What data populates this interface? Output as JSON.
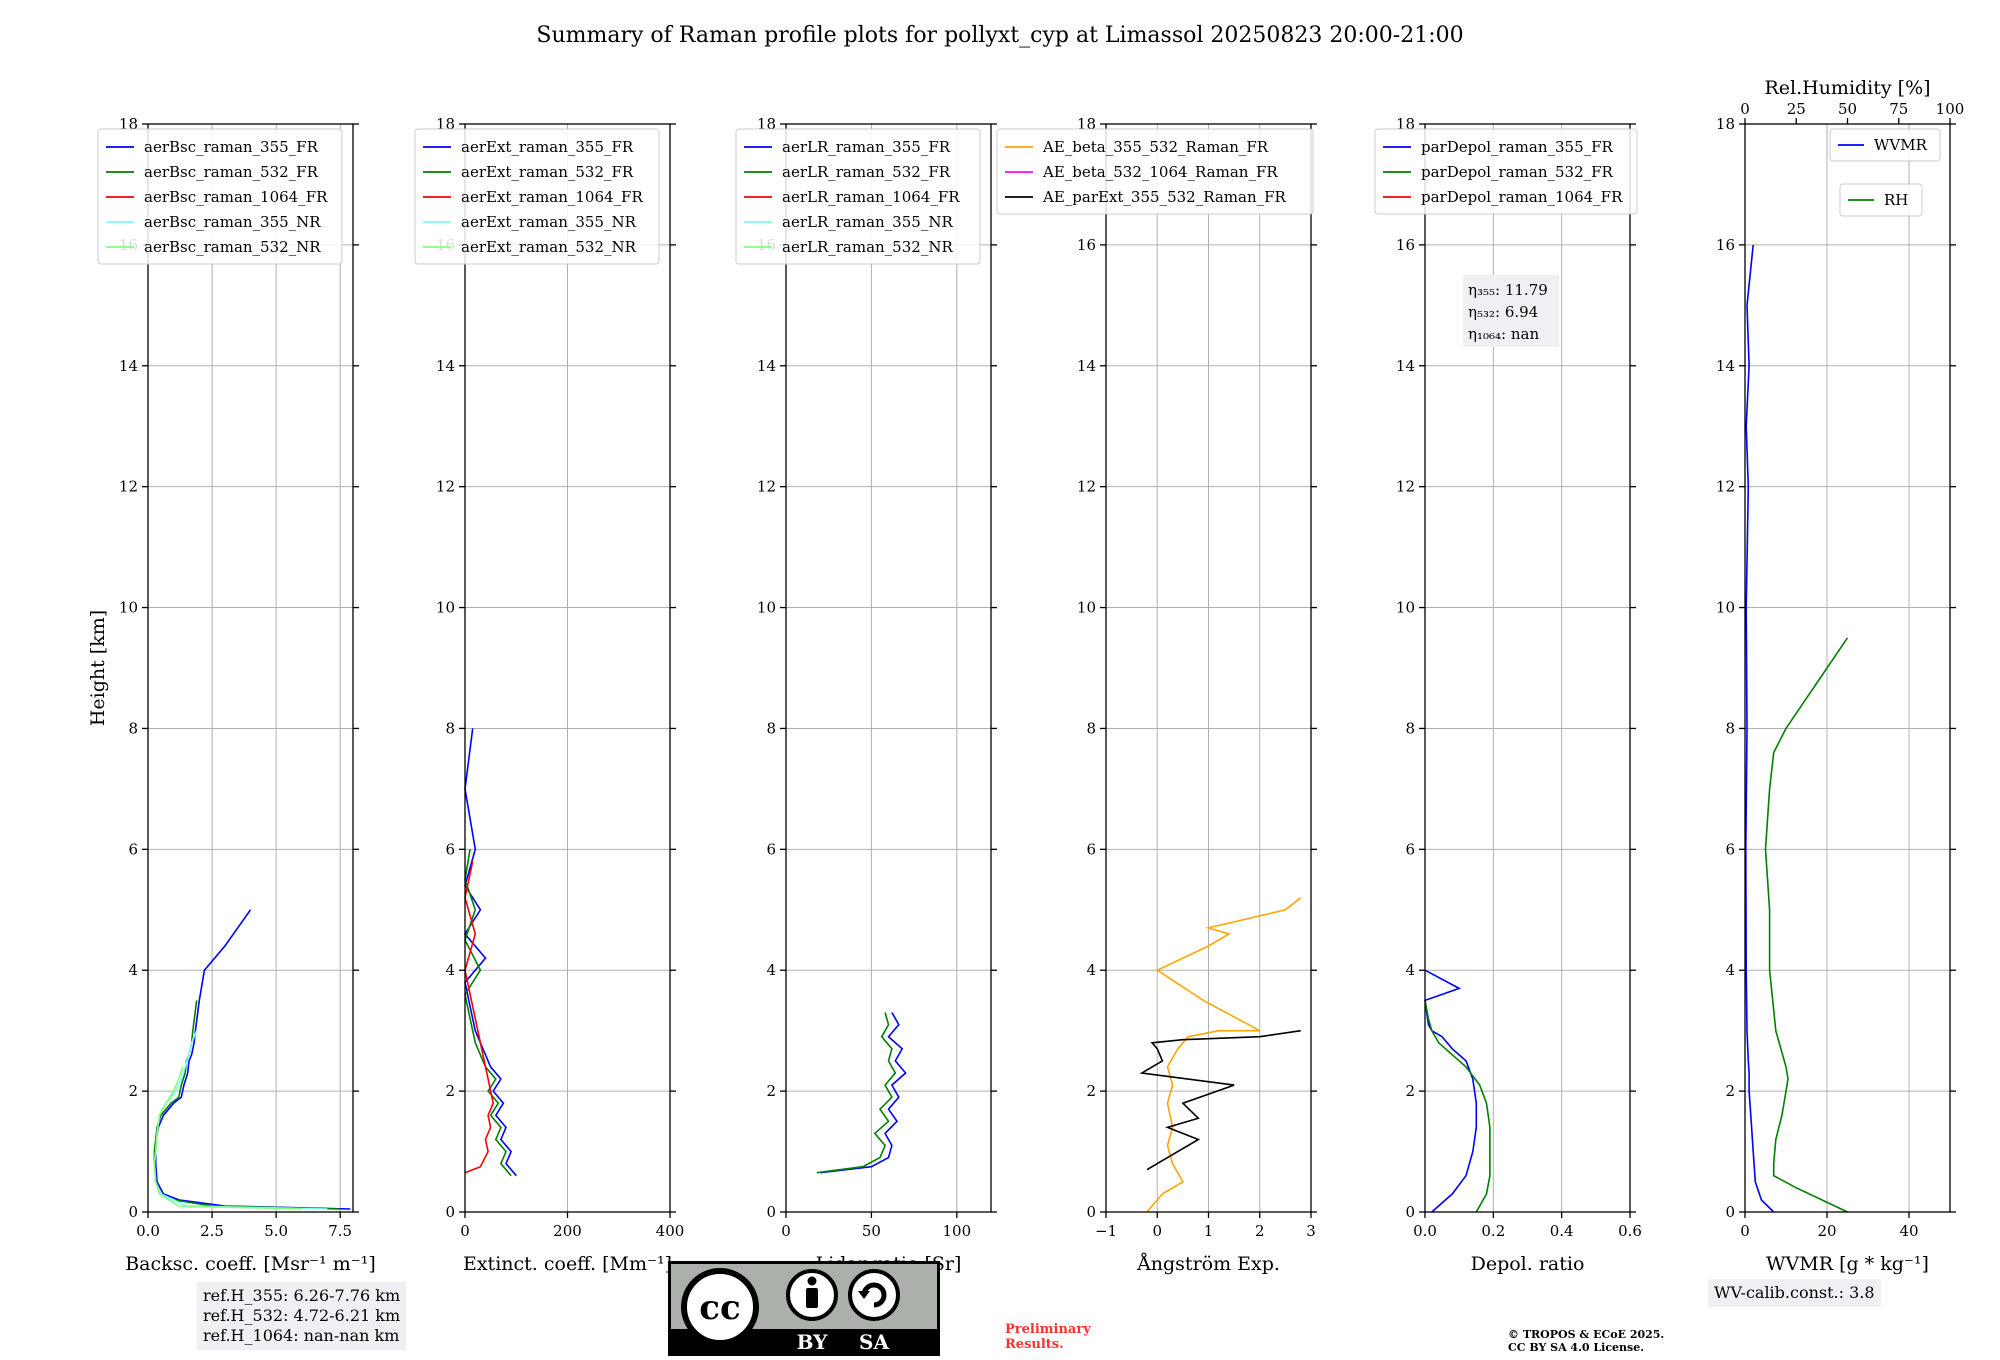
{
  "title": "Summary of Raman profile plots for pollyxt_cyp at Limassol 20250823 20:00-21:00",
  "y_label": "Height [km]",
  "chart_data": [
    {
      "id": "bsc",
      "type": "line",
      "xlabel": "Backsc. coeff. [Msr⁻¹ m⁻¹]",
      "xlim": [
        0,
        8
      ],
      "ylim": [
        0,
        18
      ],
      "xticks": [
        0,
        2.5,
        5,
        7.5
      ],
      "xticklabels": [
        "0.0",
        "2.5",
        "5.0",
        "7.5"
      ],
      "yticks": [
        0,
        2,
        4,
        6,
        8,
        10,
        12,
        14,
        16,
        18
      ],
      "legend_position": "top-left",
      "series": [
        {
          "name": "aerBsc_raman_355_FR",
          "color": "#0000ff",
          "x": [
            7.9,
            3.0,
            1.2,
            0.6,
            0.35,
            0.3,
            0.3,
            0.32,
            0.4,
            0.6,
            1.0,
            1.3,
            1.4,
            1.55,
            1.6,
            1.7,
            1.8,
            1.85,
            2.0,
            2.2,
            3.0,
            4.0
          ],
          "y": [
            0.05,
            0.1,
            0.2,
            0.3,
            0.5,
            0.8,
            1.0,
            1.2,
            1.4,
            1.6,
            1.8,
            1.9,
            2.1,
            2.3,
            2.5,
            2.6,
            2.8,
            3.0,
            3.5,
            4.0,
            4.4,
            5.0
          ]
        },
        {
          "name": "aerBsc_raman_532_FR",
          "color": "#008000",
          "x": [
            7.5,
            2.5,
            1.0,
            0.5,
            0.3,
            0.25,
            0.25,
            0.3,
            0.35,
            0.5,
            0.9,
            1.2,
            1.3,
            1.45,
            1.5,
            1.6,
            1.7,
            1.75,
            1.9
          ],
          "y": [
            0.05,
            0.1,
            0.2,
            0.3,
            0.5,
            0.8,
            1.0,
            1.2,
            1.4,
            1.6,
            1.8,
            1.9,
            2.1,
            2.3,
            2.5,
            2.6,
            2.8,
            3.0,
            3.5
          ]
        },
        {
          "name": "aerBsc_raman_1064_FR",
          "color": "#ff0000",
          "x": [],
          "y": []
        },
        {
          "name": "aerBsc_raman_355_NR",
          "color": "#7ffff0",
          "x": [
            7.0,
            1.5,
            0.5,
            0.3,
            0.25,
            0.3,
            0.35,
            0.45,
            0.7,
            1.1,
            1.3,
            1.45,
            1.6,
            1.7,
            1.9
          ],
          "y": [
            0.05,
            0.1,
            0.3,
            0.5,
            0.8,
            1.0,
            1.3,
            1.6,
            1.8,
            2.0,
            2.2,
            2.4,
            2.6,
            2.8,
            3.0
          ]
        },
        {
          "name": "aerBsc_raman_532_NR",
          "color": "#7fff7f",
          "x": [
            6.0,
            1.2,
            0.45,
            0.3,
            0.25,
            0.3,
            0.35,
            0.45,
            0.7,
            1.0,
            1.2,
            1.35
          ],
          "y": [
            0.05,
            0.1,
            0.3,
            0.5,
            0.8,
            1.0,
            1.3,
            1.6,
            1.8,
            2.0,
            2.2,
            2.4
          ]
        }
      ]
    },
    {
      "id": "ext",
      "type": "line",
      "xlabel": "Extinct. coeff. [Mm⁻¹]",
      "xlim": [
        0,
        400
      ],
      "ylim": [
        0,
        18
      ],
      "xticks": [
        0,
        200,
        400
      ],
      "xticklabels": [
        "0",
        "200",
        "400"
      ],
      "yticks": [
        0,
        2,
        4,
        6,
        8,
        10,
        12,
        14,
        16,
        18
      ],
      "legend_position": "top-left",
      "series": [
        {
          "name": "aerExt_raman_355_FR",
          "color": "#0000ff",
          "x": [
            100,
            80,
            90,
            70,
            80,
            60,
            75,
            55,
            70,
            50,
            40,
            30,
            20,
            10,
            0,
            40,
            0,
            30,
            0,
            20,
            0,
            15
          ],
          "y": [
            0.6,
            0.8,
            1.0,
            1.2,
            1.4,
            1.6,
            1.8,
            2.0,
            2.2,
            2.4,
            2.6,
            2.8,
            3.0,
            3.4,
            3.8,
            4.2,
            4.6,
            5.0,
            5.4,
            6.0,
            7.0,
            8.0
          ]
        },
        {
          "name": "aerExt_raman_532_FR",
          "color": "#008000",
          "x": [
            90,
            70,
            80,
            60,
            70,
            50,
            65,
            45,
            60,
            40,
            30,
            20,
            10,
            0,
            30,
            0,
            20,
            0,
            10
          ],
          "y": [
            0.6,
            0.8,
            1.0,
            1.2,
            1.4,
            1.6,
            1.8,
            2.0,
            2.2,
            2.4,
            2.6,
            2.8,
            3.2,
            3.6,
            4.0,
            4.5,
            5.0,
            5.5,
            6.0
          ]
        },
        {
          "name": "aerExt_raman_1064_FR",
          "color": "#ff0000",
          "x": [
            0,
            30,
            45,
            40,
            50,
            45,
            55,
            50,
            45,
            40,
            35,
            30,
            20,
            10,
            0,
            20,
            0,
            15
          ],
          "y": [
            0.65,
            0.75,
            1.0,
            1.2,
            1.4,
            1.6,
            1.8,
            2.0,
            2.2,
            2.4,
            2.6,
            2.8,
            3.2,
            3.6,
            4.0,
            4.6,
            5.2,
            5.8
          ]
        },
        {
          "name": "aerExt_raman_355_NR",
          "color": "#7ffff0",
          "x": [],
          "y": []
        },
        {
          "name": "aerExt_raman_532_NR",
          "color": "#7fff7f",
          "x": [],
          "y": []
        }
      ]
    },
    {
      "id": "lr",
      "type": "line",
      "xlabel": "Lidar ratio [Sr]",
      "xlim": [
        0,
        120
      ],
      "ylim": [
        0,
        18
      ],
      "xticks": [
        0,
        50,
        100
      ],
      "xticklabels": [
        "0",
        "50",
        "100"
      ],
      "yticks": [
        0,
        2,
        4,
        6,
        8,
        10,
        12,
        14,
        16,
        18
      ],
      "legend_position": "top-left",
      "series": [
        {
          "name": "aerLR_raman_355_FR",
          "color": "#0000ff",
          "x": [
            20,
            50,
            60,
            62,
            58,
            65,
            60,
            66,
            62,
            70,
            64,
            68,
            60,
            66,
            62
          ],
          "y": [
            0.65,
            0.75,
            0.9,
            1.1,
            1.3,
            1.5,
            1.7,
            1.9,
            2.1,
            2.3,
            2.5,
            2.7,
            2.9,
            3.1,
            3.3
          ]
        },
        {
          "name": "aerLR_raman_532_FR",
          "color": "#008000",
          "x": [
            18,
            45,
            55,
            58,
            52,
            60,
            55,
            62,
            58,
            64,
            60,
            62,
            56,
            60,
            58
          ],
          "y": [
            0.65,
            0.75,
            0.9,
            1.1,
            1.3,
            1.5,
            1.7,
            1.9,
            2.1,
            2.3,
            2.5,
            2.7,
            2.9,
            3.1,
            3.3
          ]
        },
        {
          "name": "aerLR_raman_1064_FR",
          "color": "#ff0000",
          "x": [],
          "y": []
        },
        {
          "name": "aerLR_raman_355_NR",
          "color": "#7ffff0",
          "x": [],
          "y": []
        },
        {
          "name": "aerLR_raman_532_NR",
          "color": "#7fff7f",
          "x": [],
          "y": []
        }
      ]
    },
    {
      "id": "ae",
      "type": "line",
      "xlabel": "Ångström Exp.",
      "xlim": [
        -1,
        3
      ],
      "ylim": [
        0,
        18
      ],
      "xticks": [
        -1,
        0,
        1,
        2,
        3
      ],
      "xticklabels": [
        "−1",
        "0",
        "1",
        "2",
        "3"
      ],
      "yticks": [
        0,
        2,
        4,
        6,
        8,
        10,
        12,
        14,
        16,
        18
      ],
      "legend_position": "top-right",
      "series": [
        {
          "name": "AE_beta_355_532_Raman_FR",
          "color": "#ffa500",
          "x": [
            -0.2,
            0.1,
            0.5,
            0.3,
            0.2,
            0.3,
            0.2,
            0.3,
            0.2,
            0.4,
            0.6,
            1.2,
            2.0,
            0.9,
            0.0,
            0.5,
            1.0,
            1.4,
            1.0,
            1.5,
            2.5,
            2.8
          ],
          "y": [
            0,
            0.3,
            0.5,
            0.8,
            1.1,
            1.4,
            1.8,
            2.1,
            2.4,
            2.7,
            2.9,
            3.0,
            3.0,
            3.5,
            4.0,
            4.2,
            4.4,
            4.6,
            4.7,
            4.8,
            5.0,
            5.2
          ]
        },
        {
          "name": "AE_beta_532_1064_Raman_FR",
          "color": "#ff00ff",
          "x": [],
          "y": []
        },
        {
          "name": "AE_parExt_355_532_Raman_FR",
          "color": "#000000",
          "x": [
            -0.2,
            0.0,
            0.8,
            0.2,
            0.8,
            0.5,
            1.5,
            -0.3,
            0.1,
            0.0,
            -0.1,
            0.5,
            2.0,
            2.8
          ],
          "y": [
            0.7,
            0.8,
            1.2,
            1.4,
            1.55,
            1.8,
            2.1,
            2.3,
            2.5,
            2.7,
            2.8,
            2.85,
            2.9,
            3.0
          ]
        }
      ]
    },
    {
      "id": "depol",
      "type": "line",
      "xlabel": "Depol. ratio",
      "xlim": [
        0,
        0.6
      ],
      "ylim": [
        0,
        18
      ],
      "xticks": [
        0,
        0.2,
        0.4,
        0.6
      ],
      "xticklabels": [
        "0.0",
        "0.2",
        "0.4",
        "0.6"
      ],
      "yticks": [
        0,
        2,
        4,
        6,
        8,
        10,
        12,
        14,
        16,
        18
      ],
      "legend_position": "top-left",
      "series": [
        {
          "name": "parDepol_raman_355_FR",
          "color": "#0000ff",
          "x": [
            0.02,
            0.08,
            0.12,
            0.14,
            0.15,
            0.15,
            0.14,
            0.12,
            0.08,
            0.05,
            0.02,
            0.01,
            0.0,
            0.1,
            0.0
          ],
          "y": [
            0,
            0.3,
            0.6,
            1.0,
            1.4,
            1.8,
            2.2,
            2.5,
            2.7,
            2.9,
            3.0,
            3.1,
            3.5,
            3.7,
            4.0
          ]
        },
        {
          "name": "parDepol_raman_532_FR",
          "color": "#008000",
          "x": [
            0.15,
            0.18,
            0.19,
            0.19,
            0.19,
            0.18,
            0.16,
            0.12,
            0.08,
            0.04,
            0.02,
            0.01,
            0.0
          ],
          "y": [
            0,
            0.3,
            0.6,
            1.0,
            1.4,
            1.8,
            2.1,
            2.4,
            2.6,
            2.8,
            3.0,
            3.2,
            3.5
          ]
        },
        {
          "name": "parDepol_raman_1064_FR",
          "color": "#ff0000",
          "x": [],
          "y": []
        }
      ],
      "annotation": [
        "η₃₅₅: 11.79",
        "η₅₃₂: 6.94",
        "η₁₀₆₄: nan"
      ]
    },
    {
      "id": "wv",
      "type": "line",
      "xlabel": "WVMR [g * kg⁻¹]",
      "xlim": [
        0,
        50
      ],
      "ylim": [
        0,
        18
      ],
      "xticks": [
        0,
        20,
        40
      ],
      "xticklabels": [
        "0",
        "20",
        "40"
      ],
      "yticks": [
        0,
        2,
        4,
        6,
        8,
        10,
        12,
        14,
        16,
        18
      ],
      "top_axis": {
        "label": "Rel.Humidity [%]",
        "xlim": [
          0,
          100
        ],
        "xticks": [
          0,
          25,
          50,
          75,
          100
        ],
        "xticklabels": [
          "0",
          "25",
          "50",
          "75",
          "100"
        ]
      },
      "legend_position": "top-right",
      "series": [
        {
          "name": "WVMR",
          "color": "#0000ff",
          "axis": "bottom",
          "x": [
            7,
            4,
            2.5,
            2.0,
            1.5,
            1.0,
            1.0,
            0.8,
            0.5,
            0.3,
            0.2,
            0.5,
            0.3,
            0.8,
            0.3,
            1.0,
            0.5,
            2.0
          ],
          "y": [
            0,
            0.2,
            0.5,
            1.0,
            1.5,
            2.0,
            2.3,
            2.5,
            3.0,
            4.0,
            6.0,
            8.0,
            10,
            12,
            13,
            14,
            15,
            16
          ]
        },
        {
          "name": "RH",
          "color": "#008000",
          "axis": "top",
          "x": [
            50,
            25,
            14,
            14,
            15,
            18,
            20,
            21,
            20,
            15,
            12,
            12,
            10,
            12,
            14,
            20,
            30,
            40,
            50
          ],
          "y": [
            0,
            0.4,
            0.6,
            0.8,
            1.2,
            1.6,
            2.0,
            2.2,
            2.4,
            3.0,
            4.0,
            5.0,
            6.0,
            7.0,
            7.6,
            8.0,
            8.5,
            9.0,
            9.5
          ]
        }
      ]
    }
  ],
  "info_boxes": {
    "ref_h": [
      "ref.H_355: 6.26-7.76 km",
      "ref.H_532: 4.72-6.21 km",
      "ref.H_1064: nan-nan km"
    ],
    "wv_calib": "WV-calib.const.: 3.8"
  },
  "license_badge": {
    "cc": "cc",
    "by": "BY",
    "sa": "SA"
  },
  "preliminary": [
    "Preliminary",
    "Results."
  ],
  "copyright": [
    "© TROPOS & ECoE 2025.",
    "CC BY SA 4.0 License."
  ]
}
